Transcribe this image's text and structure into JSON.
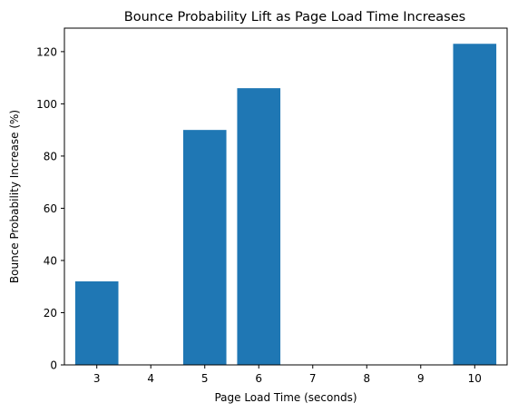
{
  "chart_data": {
    "type": "bar",
    "title": "Bounce Probability Lift as Page Load Time Increases",
    "xlabel": "Page Load Time (seconds)",
    "ylabel": "Bounce Probability Increase (%)",
    "x": [
      3,
      5,
      6,
      10
    ],
    "values": [
      32,
      90,
      106,
      123
    ],
    "xticks": [
      "3",
      "4",
      "5",
      "6",
      "7",
      "8",
      "9",
      "10"
    ],
    "xlim": [
      2.4,
      10.6
    ],
    "ylim": [
      0,
      129
    ],
    "yticks": [
      0,
      20,
      40,
      60,
      80,
      100,
      120
    ],
    "bar_color": "#1f77b4",
    "grid": false,
    "legend": "none"
  }
}
